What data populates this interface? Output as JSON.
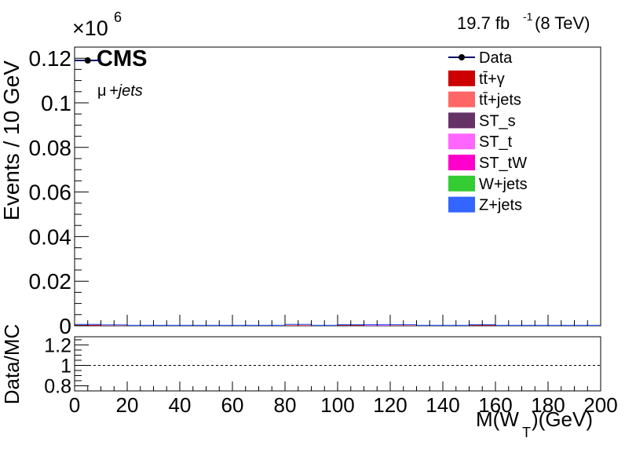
{
  "header": {
    "lumi": "19.7 fb",
    "lumi_exp": "-1",
    "energy": "(8 TeV)",
    "experiment": "CMS",
    "channel_mu": "μ",
    "channel_jets": "+jets",
    "multiplier_base": "×10",
    "multiplier_exp": "6"
  },
  "chart_data": [
    {
      "type": "bar",
      "stacked": true,
      "title": "",
      "xlabel": "M(W_T)(GeV)",
      "xlabel_main": "M(W",
      "xlabel_sub": "T",
      "xlabel_end": ")(GeV)",
      "ylabel": "Events / 10 GeV",
      "xlim": [
        0,
        200
      ],
      "ylim": [
        0,
        0.125
      ],
      "y_multiplier": "×10^6",
      "bin_width": 10,
      "x_ticks": [
        0,
        20,
        40,
        60,
        80,
        100,
        120,
        140,
        160,
        180,
        200
      ],
      "x_tick_labels": [
        "0",
        "20",
        "40",
        "60",
        "80",
        "100",
        "120",
        "140",
        "160",
        "180",
        "200"
      ],
      "y_ticks": [
        0,
        0.02,
        0.04,
        0.06,
        0.08,
        0.1,
        0.12
      ],
      "y_tick_labels": [
        "0",
        "0.02",
        "0.04",
        "0.06",
        "0.08",
        "0.1",
        "0.12"
      ],
      "legend_position": "top-right",
      "data_points": [
        {
          "x": 5,
          "y": 0.119
        }
      ],
      "series": [
        {
          "name": "tt̄+γ",
          "color": "#cc0000",
          "values": [
            0.0004,
            0,
            0,
            0,
            0,
            0,
            0,
            0,
            0,
            0,
            0.0003,
            0,
            0,
            0,
            0,
            0.0003,
            0,
            0,
            0,
            0
          ]
        },
        {
          "name": "tt̄+jets",
          "color": "#ff6666",
          "values": [
            0,
            0.0002,
            0,
            0,
            0,
            0,
            0,
            0,
            0.0004,
            0,
            0,
            0,
            0.0003,
            0,
            0,
            0,
            0,
            0,
            0,
            0
          ]
        },
        {
          "name": "ST_s",
          "color": "#663366",
          "values": [
            0,
            0,
            0,
            0,
            0,
            0,
            0,
            0,
            0,
            0,
            0,
            0,
            0,
            0,
            0,
            0,
            0,
            0,
            0,
            0
          ]
        },
        {
          "name": "ST_t",
          "color": "#ff66ff",
          "values": [
            0,
            0,
            0,
            0,
            0,
            0,
            0,
            0,
            0,
            0,
            0,
            0.0003,
            0,
            0,
            0,
            0,
            0,
            0,
            0,
            0
          ]
        },
        {
          "name": "ST_tW",
          "color": "#ff00cc",
          "values": [
            0,
            0,
            0,
            0,
            0,
            0,
            0,
            0,
            0,
            0,
            0,
            0,
            0,
            0,
            0,
            0,
            0,
            0,
            0,
            0
          ]
        },
        {
          "name": "W+jets",
          "color": "#33cc33",
          "values": [
            0,
            0,
            0,
            0,
            0,
            0,
            0,
            0,
            0,
            0,
            0,
            0,
            0,
            0,
            0,
            0,
            0,
            0,
            0,
            0
          ]
        },
        {
          "name": "Z+jets",
          "color": "#3366ff",
          "values": [
            0.0004,
            0.0004,
            0.0004,
            0.0004,
            0.0004,
            0.0004,
            0.0004,
            0.0004,
            0.0004,
            0.0004,
            0.0004,
            0.0004,
            0.0004,
            0.0004,
            0.0004,
            0.0004,
            0.0004,
            0.0004,
            0.0004,
            0.0004
          ]
        }
      ],
      "legend": [
        {
          "name": "Data",
          "kind": "marker",
          "color": "#000000",
          "line_color": "#000066"
        },
        {
          "name": "tt̄+γ",
          "kind": "fill",
          "color": "#cc0000"
        },
        {
          "name": "tt̄+jets",
          "kind": "fill",
          "color": "#ff6666"
        },
        {
          "name": "ST_s",
          "kind": "fill",
          "color": "#663366"
        },
        {
          "name": "ST_t",
          "kind": "fill",
          "color": "#ff66ff"
        },
        {
          "name": "ST_tW",
          "kind": "fill",
          "color": "#ff00cc"
        },
        {
          "name": "W+jets",
          "kind": "fill",
          "color": "#33cc33"
        },
        {
          "name": "Z+jets",
          "kind": "fill",
          "color": "#3366ff"
        }
      ]
    },
    {
      "type": "line",
      "title": "",
      "xlabel": "M(W_T)(GeV)",
      "ylabel": "Data/MC",
      "xlim": [
        0,
        200
      ],
      "ylim": [
        0.75,
        1.28
      ],
      "y_ticks": [
        0.8,
        1,
        1.2
      ],
      "y_tick_labels": [
        "0.8",
        "1",
        "1.2"
      ],
      "reference_line": 1.0,
      "reference_style": "dotted"
    }
  ]
}
